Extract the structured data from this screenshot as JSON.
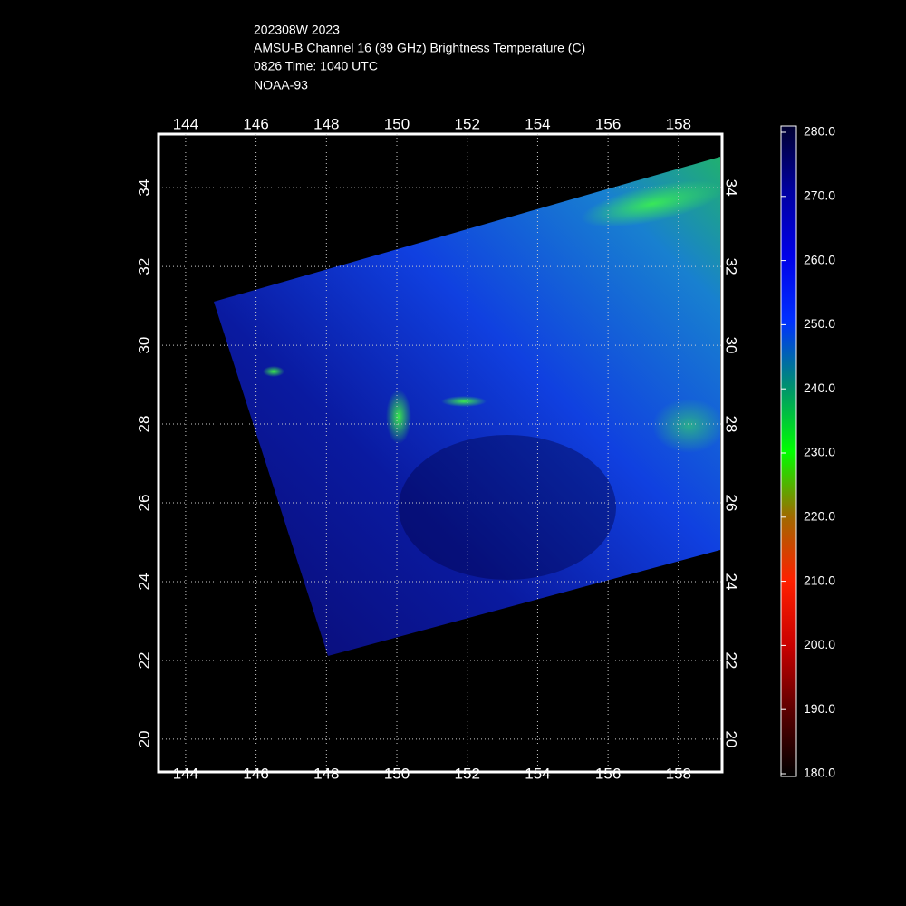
{
  "title_lines": [
    "202308W 2023",
    "AMSU-B Channel 16 (89 GHz) Brightness Temperature (C)",
    "0826 Time: 1040 UTC",
    "NOAA-93"
  ],
  "map": {
    "xlim": [
      143.23,
      159.24
    ],
    "ylim": [
      19.17,
      35.36
    ],
    "xticks": [
      144,
      146,
      148,
      150,
      152,
      154,
      156,
      158
    ],
    "yticks": [
      20,
      22,
      24,
      26,
      28,
      30,
      32,
      34
    ],
    "grid": true
  },
  "colorbar": {
    "range": [
      180,
      280
    ],
    "colors": [
      "#000000",
      "#5a0000",
      "#c80000",
      "#ff2000",
      "#a06a00",
      "#00ff00",
      "#009070",
      "#0030ff",
      "#0000e8",
      "#0000a0",
      "#000030"
    ],
    "ticks": [
      {
        "value": 280,
        "label": "280.0"
      },
      {
        "value": 270,
        "label": "270.0"
      },
      {
        "value": 260,
        "label": "260.0"
      },
      {
        "value": 250,
        "label": "250.0"
      },
      {
        "value": 240,
        "label": "240.0"
      },
      {
        "value": 230,
        "label": "230.0"
      },
      {
        "value": 220,
        "label": "220.0"
      },
      {
        "value": 210,
        "label": "210.0"
      },
      {
        "value": 200,
        "label": "200.0"
      },
      {
        "value": 190,
        "label": "190.0"
      },
      {
        "value": 180,
        "label": "180.0"
      }
    ]
  }
}
